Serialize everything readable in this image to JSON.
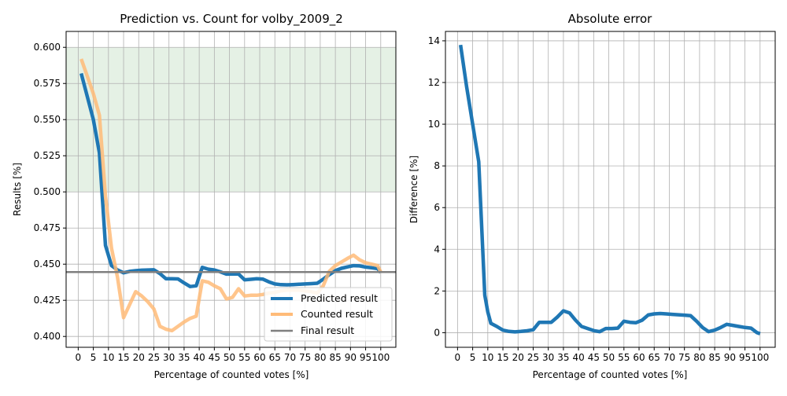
{
  "chart_data": [
    {
      "type": "line",
      "title": "Prediction vs. Count for volby_2009_2",
      "xlabel": "Percentage of counted votes [%]",
      "ylabel": "Results [%]",
      "xlim": [
        -4,
        105
      ],
      "ylim": [
        0.3925,
        0.611
      ],
      "xticks": [
        0,
        5,
        10,
        15,
        20,
        25,
        30,
        35,
        40,
        45,
        50,
        55,
        60,
        65,
        70,
        75,
        80,
        85,
        90,
        95,
        100
      ],
      "yticks": [
        0.4,
        0.425,
        0.45,
        0.475,
        0.5,
        0.525,
        0.55,
        0.575,
        0.6
      ],
      "ytick_labels": [
        "0.400",
        "0.425",
        "0.450",
        "0.475",
        "0.500",
        "0.525",
        "0.550",
        "0.575",
        "0.600"
      ],
      "grid": true,
      "legend": "lower-right",
      "shaded_band": {
        "y0": 0.5,
        "y1": 0.6,
        "color": "#e5f1e5"
      },
      "series": [
        {
          "name": "Predicted result",
          "color": "#1f77b4",
          "x": [
            1,
            3,
            5,
            7,
            9,
            11,
            13,
            15,
            17,
            19,
            21,
            23,
            25,
            27,
            29,
            31,
            33,
            35,
            37,
            39,
            41,
            43,
            45,
            47,
            49,
            51,
            53,
            55,
            57,
            59,
            61,
            63,
            65,
            67,
            69,
            71,
            73,
            75,
            77,
            79,
            81,
            83,
            85,
            87,
            89,
            91,
            93,
            95,
            97,
            99,
            100
          ],
          "values": [
            0.582,
            0.566,
            0.55,
            0.527,
            0.463,
            0.449,
            0.446,
            0.444,
            0.445,
            0.4455,
            0.4458,
            0.446,
            0.4461,
            0.4435,
            0.4399,
            0.4399,
            0.4398,
            0.437,
            0.4345,
            0.435,
            0.4478,
            0.4465,
            0.446,
            0.4447,
            0.4431,
            0.4432,
            0.4432,
            0.4392,
            0.4395,
            0.4399,
            0.4397,
            0.4378,
            0.4363,
            0.4358,
            0.4357,
            0.4359,
            0.4361,
            0.4363,
            0.4365,
            0.4368,
            0.4396,
            0.4427,
            0.4455,
            0.4471,
            0.4481,
            0.449,
            0.4488,
            0.448,
            0.4475,
            0.4469,
            0.4442
          ]
        },
        {
          "name": "Counted result",
          "color": "#ffbb78",
          "x": [
            1,
            3,
            5,
            7,
            9,
            11,
            13,
            15,
            17,
            19,
            21,
            23,
            25,
            27,
            29,
            31,
            33,
            35,
            37,
            39,
            41,
            43,
            45,
            47,
            49,
            51,
            53,
            55,
            57,
            59,
            61,
            63,
            65,
            67,
            69,
            71,
            73,
            75,
            77,
            79,
            81,
            83,
            85,
            87,
            89,
            91,
            93,
            95,
            97,
            99,
            100
          ],
          "values": [
            0.592,
            0.58,
            0.568,
            0.553,
            0.497,
            0.461,
            0.441,
            0.413,
            0.422,
            0.431,
            0.428,
            0.424,
            0.419,
            0.407,
            0.405,
            0.404,
            0.407,
            0.41,
            0.4125,
            0.414,
            0.4385,
            0.4375,
            0.435,
            0.433,
            0.426,
            0.427,
            0.433,
            0.428,
            0.4285,
            0.4285,
            0.429,
            0.43,
            0.4305,
            0.4315,
            0.432,
            0.432,
            0.432,
            0.4315,
            0.431,
            0.43,
            0.435,
            0.445,
            0.449,
            0.4515,
            0.454,
            0.4562,
            0.453,
            0.451,
            0.45,
            0.449,
            0.4445
          ]
        },
        {
          "name": "Final result",
          "color": "#7f7f7f",
          "x": [
            -4,
            105
          ],
          "values": [
            0.4445,
            0.4445
          ]
        }
      ]
    },
    {
      "type": "line",
      "title": "Absolute error",
      "xlabel": "Percentage of counted votes [%]",
      "ylabel": "Difference [%]",
      "xlim": [
        -4,
        105
      ],
      "ylim": [
        -0.7,
        14.45
      ],
      "xticks": [
        0,
        5,
        10,
        15,
        20,
        25,
        30,
        35,
        40,
        45,
        50,
        55,
        60,
        65,
        70,
        75,
        80,
        85,
        90,
        95,
        100
      ],
      "yticks": [
        0,
        2,
        4,
        6,
        8,
        10,
        12,
        14
      ],
      "ytick_labels": [
        "0",
        "2",
        "4",
        "6",
        "8",
        "10",
        "12",
        "14"
      ],
      "grid": true,
      "series": [
        {
          "name": "",
          "color": "#1f77b4",
          "x": [
            1,
            3,
            5,
            7,
            9,
            10,
            11,
            13,
            15,
            17,
            19,
            21,
            23,
            25,
            27,
            29,
            31,
            33,
            35,
            37,
            39,
            41,
            43,
            45,
            47,
            49,
            51,
            53,
            55,
            57,
            59,
            61,
            63,
            65,
            67,
            69,
            71,
            73,
            75,
            77,
            79,
            81,
            83,
            85,
            87,
            89,
            91,
            93,
            95,
            97,
            99,
            100
          ],
          "values": [
            13.8,
            11.8,
            10.0,
            8.2,
            1.8,
            1.0,
            0.45,
            0.3,
            0.12,
            0.06,
            0.04,
            0.06,
            0.09,
            0.14,
            0.5,
            0.5,
            0.5,
            0.75,
            1.05,
            0.95,
            0.6,
            0.3,
            0.2,
            0.1,
            0.05,
            0.2,
            0.2,
            0.22,
            0.55,
            0.5,
            0.48,
            0.6,
            0.85,
            0.9,
            0.92,
            0.9,
            0.88,
            0.86,
            0.84,
            0.82,
            0.55,
            0.25,
            0.05,
            0.12,
            0.25,
            0.4,
            0.35,
            0.3,
            0.25,
            0.22,
            0.0,
            -0.05
          ]
        }
      ]
    }
  ]
}
